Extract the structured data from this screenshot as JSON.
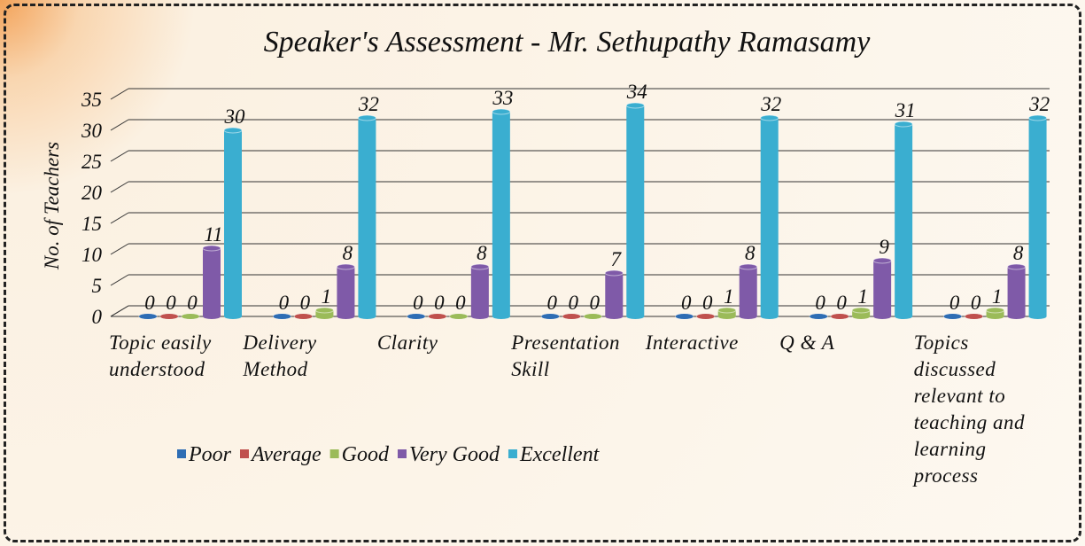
{
  "chart_data": {
    "type": "bar",
    "title": "Speaker's Assessment - Mr. Sethupathy Ramasamy",
    "y_label": "No. of Teachers",
    "categories": [
      "Topic easily understood",
      "Delivery Method",
      "Clarity",
      "Presentation Skill",
      "Interactive",
      "Q & A",
      "Topics discussed relevant to teaching and learning process"
    ],
    "series": [
      {
        "name": "Poor",
        "color": "#2e6db4",
        "values": [
          0,
          0,
          0,
          0,
          0,
          0,
          0
        ]
      },
      {
        "name": "Average",
        "color": "#c0504d",
        "values": [
          0,
          0,
          0,
          0,
          0,
          0,
          0
        ]
      },
      {
        "name": "Good",
        "color": "#9bbb59",
        "values": [
          0,
          1,
          0,
          0,
          1,
          1,
          1
        ]
      },
      {
        "name": "Very Good",
        "color": "#7f5aa8",
        "values": [
          11,
          8,
          8,
          7,
          8,
          9,
          8
        ]
      },
      {
        "name": "Excellent",
        "color": "#3aaed0",
        "values": [
          30,
          32,
          33,
          34,
          32,
          31,
          32
        ]
      }
    ],
    "ylim": [
      0,
      35
    ],
    "yticks": [
      0,
      5,
      10,
      15,
      20,
      25,
      30,
      35
    ],
    "grid": true
  }
}
